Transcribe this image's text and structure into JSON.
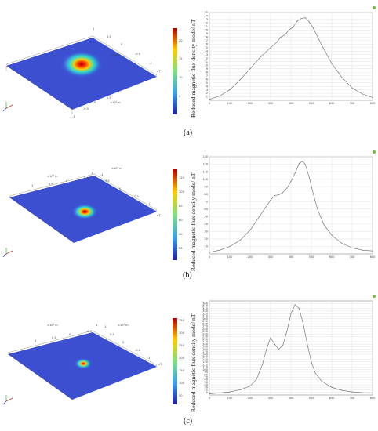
{
  "figure": {
    "panels": [
      {
        "caption": "(a)",
        "surface": {
          "axis_ticks_a": [
            "1",
            "0.5",
            "0",
            "-0.5",
            "-1"
          ],
          "axis_ticks_b": [
            "1",
            "0.5",
            "0",
            "-0.5",
            "-1"
          ],
          "axis_unit_a": "×10⁴ m",
          "axis_unit_b": "×10⁴ m",
          "z_unit": "nT",
          "colorbar_ticks": [
            "20",
            "15",
            "10",
            "5"
          ]
        }
      },
      {
        "caption": "(b)",
        "surface": {
          "axis_ticks_a": [
            "1",
            "0.5",
            "0",
            "-0.5",
            "-1"
          ],
          "axis_ticks_b": [
            "1",
            "0.5",
            "0",
            "-0.5",
            "-1"
          ],
          "axis_unit_a": "×10⁴ m",
          "axis_unit_b": "×10⁴ m",
          "z_unit": "nT",
          "colorbar_ticks": [
            "120",
            "100",
            "80",
            "60",
            "40",
            "20"
          ]
        }
      },
      {
        "caption": "(c)",
        "surface": {
          "axis_ticks_a": [
            "1",
            "0.5",
            "0",
            "-0.5",
            "-1"
          ],
          "axis_ticks_b": [
            "1",
            "0.5",
            "0",
            "-0.5",
            "-1"
          ],
          "axis_unit_a": "×10⁴ m",
          "axis_unit_b": "×10⁴ m",
          "z_unit": "nT",
          "colorbar_ticks": [
            "350",
            "300",
            "250",
            "200",
            "150",
            "100",
            "50"
          ]
        }
      }
    ]
  },
  "chart_data": [
    {
      "type": "line",
      "title": "",
      "xlabel": "",
      "ylabel": "Reduced magnetic flux density mode/ nT",
      "xlim": [
        0,
        800
      ],
      "ylim": [
        0,
        25
      ],
      "xticks": [
        0,
        100,
        200,
        300,
        400,
        500,
        600,
        700,
        800
      ],
      "yticks": [
        1,
        2,
        3,
        4,
        5,
        6,
        7,
        8,
        9,
        10,
        11,
        12,
        13,
        14,
        15,
        16,
        17,
        18,
        19,
        20,
        21,
        22,
        23,
        24,
        25
      ],
      "grid": true,
      "series": [
        {
          "x": [
            0,
            50,
            100,
            150,
            200,
            250,
            300,
            330,
            350,
            370,
            390,
            410,
            430,
            450,
            470,
            490,
            510,
            550,
            600,
            650,
            700,
            750,
            800
          ],
          "y": [
            0.3,
            1.2,
            3,
            5.8,
            9,
            12.3,
            15,
            16.5,
            18,
            18.6,
            20,
            20.8,
            22.5,
            23.3,
            23.5,
            22.3,
            20.5,
            15.8,
            10.5,
            6.5,
            3.5,
            1.8,
            0.8
          ]
        }
      ]
    },
    {
      "type": "line",
      "title": "",
      "xlabel": "",
      "ylabel": "Reduced magnetic flux density mode/ nT",
      "xlim": [
        0,
        800
      ],
      "ylim": [
        0,
        130
      ],
      "xticks": [
        0,
        100,
        200,
        300,
        400,
        500,
        600,
        700,
        800
      ],
      "yticks": [
        10,
        20,
        30,
        40,
        50,
        60,
        70,
        80,
        90,
        100,
        110,
        120,
        130
      ],
      "grid": true,
      "series": [
        {
          "x": [
            0,
            50,
            100,
            150,
            200,
            250,
            300,
            320,
            340,
            360,
            380,
            400,
            420,
            440,
            455,
            470,
            490,
            510,
            530,
            560,
            600,
            650,
            700,
            750,
            800
          ],
          "y": [
            2,
            5,
            10,
            18,
            32,
            52,
            72,
            78,
            79,
            82,
            88,
            97,
            108,
            121,
            124,
            120,
            102,
            80,
            60,
            40,
            25,
            14,
            8,
            5,
            4
          ]
        }
      ]
    },
    {
      "type": "line",
      "title": "",
      "xlabel": "",
      "ylabel": "Reduced magnetic flux density mode/ nT",
      "xlim": [
        0,
        800
      ],
      "ylim": [
        0,
        370
      ],
      "xticks": [
        0,
        100,
        200,
        300,
        400,
        500,
        600,
        700,
        800
      ],
      "yticks": [
        10,
        20,
        30,
        40,
        50,
        60,
        70,
        80,
        90,
        100,
        110,
        120,
        130,
        140,
        150,
        160,
        170,
        180,
        190,
        200,
        210,
        220,
        230,
        240,
        250,
        260,
        270,
        280,
        290,
        300,
        310,
        320,
        330,
        340,
        350,
        360
      ],
      "grid": true,
      "series": [
        {
          "x": [
            0,
            50,
            100,
            150,
            200,
            230,
            260,
            280,
            300,
            320,
            340,
            360,
            380,
            400,
            420,
            440,
            460,
            480,
            500,
            520,
            550,
            600,
            650,
            700,
            750,
            800
          ],
          "y": [
            5,
            8,
            12,
            20,
            35,
            60,
            120,
            180,
            225,
            200,
            180,
            195,
            250,
            320,
            355,
            340,
            280,
            200,
            130,
            85,
            55,
            30,
            18,
            12,
            9,
            8
          ]
        }
      ]
    }
  ]
}
